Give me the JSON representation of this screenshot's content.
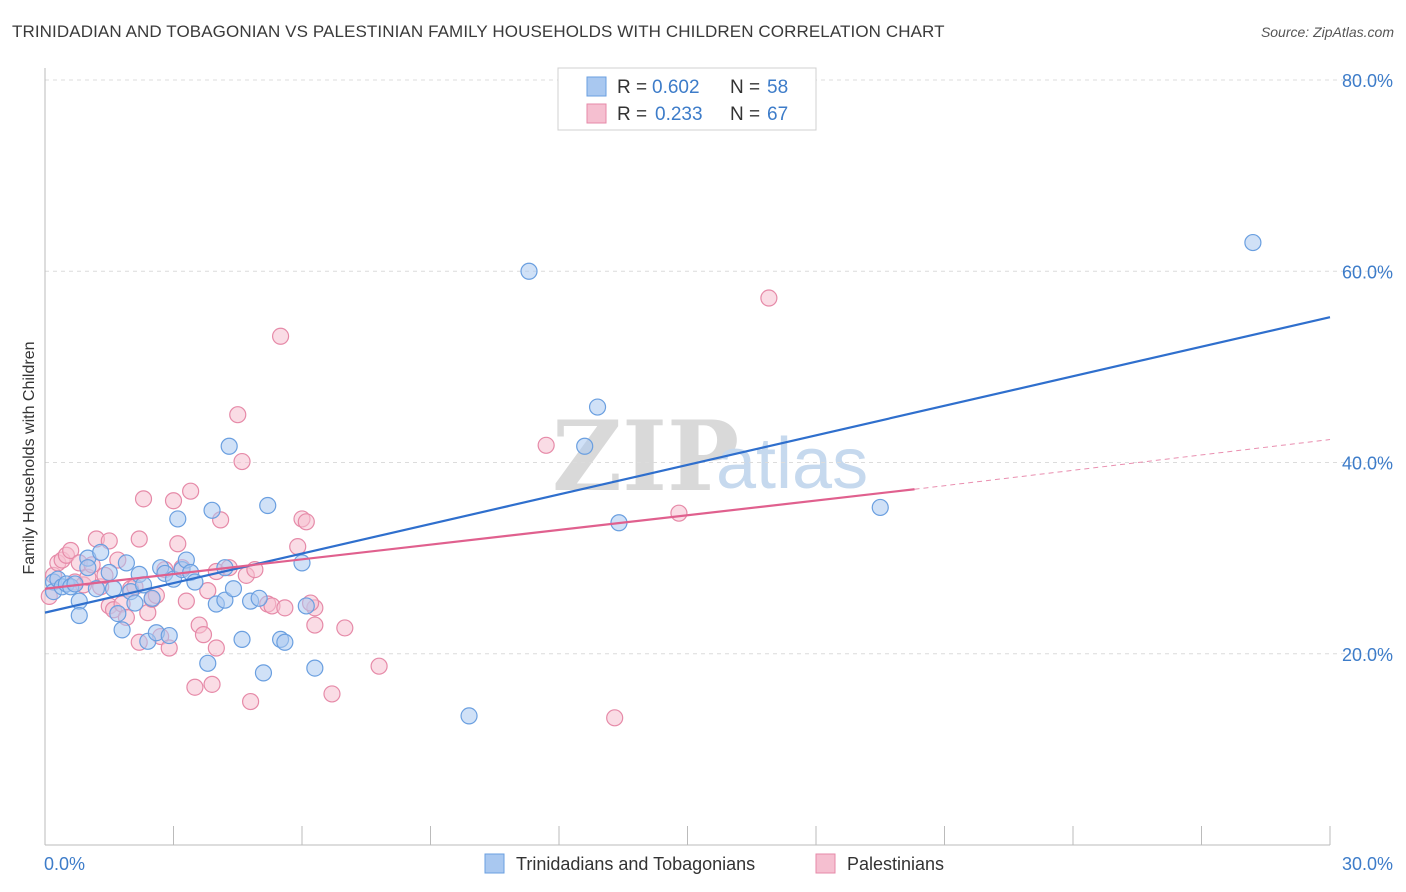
{
  "header": {
    "title": "TRINIDADIAN AND TOBAGONIAN VS PALESTINIAN FAMILY HOUSEHOLDS WITH CHILDREN CORRELATION CHART",
    "source": "Source: ZipAtlas.com"
  },
  "watermark": {
    "zip": "ZIP",
    "atlas": "atlas"
  },
  "legend": {
    "r_label": "R =",
    "n_label": "N =",
    "rows": [
      {
        "name": "Trinidadians and Tobagonians",
        "r": "0.602",
        "n": "58"
      },
      {
        "name": "Palestinians",
        "r": "0.233",
        "n": "67"
      }
    ]
  },
  "colors": {
    "blue_fill": "#a9c8f0",
    "blue_stroke": "#6a9fe0",
    "blue_line": "#2f6fcd",
    "pink_fill": "#f5bfd0",
    "pink_stroke": "#e68aa8",
    "pink_line": "#e0608e",
    "grid": "#dcdcdc",
    "tick_text": "#3d7cc9"
  },
  "chart_data": {
    "type": "scatter",
    "title": "TRINIDADIAN AND TOBAGONIAN VS PALESTINIAN FAMILY HOUSEHOLDS WITH CHILDREN CORRELATION CHART",
    "xlabel": "",
    "ylabel": "Family Households with Children",
    "xlim": [
      0,
      30
    ],
    "ylim": [
      0,
      80
    ],
    "x_tick_labels": [
      {
        "value": 0,
        "label": "0.0%"
      },
      {
        "value": 30,
        "label": "30.0%"
      }
    ],
    "y_tick_labels": [
      {
        "value": 20,
        "label": "20.0%"
      },
      {
        "value": 40,
        "label": "40.0%"
      },
      {
        "value": 60,
        "label": "60.0%"
      },
      {
        "value": 80,
        "label": "80.0%"
      }
    ],
    "series": [
      {
        "name": "Trinidadians and Tobagonians",
        "color": "blue",
        "trend": {
          "x1": 0,
          "y1": 24.3,
          "x2": 30,
          "y2": 55.2
        },
        "points": [
          [
            0.2,
            27.5
          ],
          [
            0.2,
            26.5
          ],
          [
            0.3,
            27.8
          ],
          [
            0.4,
            27.0
          ],
          [
            0.5,
            27.3
          ],
          [
            0.6,
            27.0
          ],
          [
            0.7,
            27.3
          ],
          [
            0.8,
            25.5
          ],
          [
            0.8,
            24.0
          ],
          [
            1.0,
            30.0
          ],
          [
            1.0,
            29.0
          ],
          [
            1.2,
            26.8
          ],
          [
            1.3,
            30.6
          ],
          [
            1.5,
            28.5
          ],
          [
            1.6,
            26.8
          ],
          [
            1.7,
            24.2
          ],
          [
            1.8,
            22.5
          ],
          [
            1.9,
            29.5
          ],
          [
            2.0,
            26.5
          ],
          [
            2.1,
            25.3
          ],
          [
            2.2,
            28.3
          ],
          [
            2.3,
            27.2
          ],
          [
            2.4,
            21.3
          ],
          [
            2.5,
            25.8
          ],
          [
            2.6,
            22.2
          ],
          [
            2.7,
            29.0
          ],
          [
            2.8,
            28.4
          ],
          [
            2.9,
            21.9
          ],
          [
            3.0,
            27.8
          ],
          [
            3.1,
            34.1
          ],
          [
            3.2,
            28.8
          ],
          [
            3.3,
            29.8
          ],
          [
            3.4,
            28.5
          ],
          [
            3.5,
            27.5
          ],
          [
            3.8,
            19.0
          ],
          [
            3.9,
            35.0
          ],
          [
            4.0,
            25.2
          ],
          [
            4.2,
            25.6
          ],
          [
            4.2,
            29.0
          ],
          [
            4.3,
            41.7
          ],
          [
            4.4,
            26.8
          ],
          [
            4.6,
            21.5
          ],
          [
            4.8,
            25.5
          ],
          [
            5.0,
            25.8
          ],
          [
            5.1,
            18.0
          ],
          [
            5.2,
            35.5
          ],
          [
            5.5,
            21.5
          ],
          [
            5.6,
            21.2
          ],
          [
            6.0,
            29.5
          ],
          [
            6.1,
            25.0
          ],
          [
            6.3,
            18.5
          ],
          [
            9.9,
            13.5
          ],
          [
            11.3,
            60.0
          ],
          [
            12.6,
            41.7
          ],
          [
            12.9,
            45.8
          ],
          [
            13.4,
            33.7
          ],
          [
            19.5,
            35.3
          ],
          [
            28.2,
            63.0
          ]
        ]
      },
      {
        "name": "Palestinians",
        "color": "pink",
        "trend": {
          "x1": 0,
          "y1": 26.8,
          "x2": 20.3,
          "y2": 37.2,
          "dash_to_x": 30,
          "dash_to_y": 42.4
        },
        "points": [
          [
            0.1,
            26.0
          ],
          [
            0.2,
            28.2
          ],
          [
            0.3,
            29.5
          ],
          [
            0.4,
            29.8
          ],
          [
            0.5,
            30.3
          ],
          [
            0.6,
            30.8
          ],
          [
            0.7,
            27.5
          ],
          [
            0.8,
            29.5
          ],
          [
            0.9,
            27.2
          ],
          [
            1.0,
            28.0
          ],
          [
            1.1,
            29.3
          ],
          [
            1.2,
            32.0
          ],
          [
            1.3,
            27.0
          ],
          [
            1.4,
            28.2
          ],
          [
            1.5,
            31.8
          ],
          [
            1.5,
            25.0
          ],
          [
            1.6,
            24.6
          ],
          [
            1.7,
            29.8
          ],
          [
            1.8,
            25.2
          ],
          [
            1.9,
            23.8
          ],
          [
            2.0,
            26.8
          ],
          [
            2.1,
            27.0
          ],
          [
            2.2,
            32.0
          ],
          [
            2.2,
            21.2
          ],
          [
            2.3,
            36.2
          ],
          [
            2.4,
            24.3
          ],
          [
            2.5,
            25.7
          ],
          [
            2.6,
            26.1
          ],
          [
            2.7,
            21.8
          ],
          [
            2.8,
            28.8
          ],
          [
            2.9,
            20.6
          ],
          [
            3.0,
            36.0
          ],
          [
            3.1,
            31.5
          ],
          [
            3.2,
            29.0
          ],
          [
            3.3,
            25.5
          ],
          [
            3.4,
            37.0
          ],
          [
            3.5,
            16.5
          ],
          [
            3.6,
            23.0
          ],
          [
            3.7,
            22.0
          ],
          [
            3.8,
            26.6
          ],
          [
            3.9,
            16.8
          ],
          [
            4.0,
            28.6
          ],
          [
            4.1,
            34.0
          ],
          [
            4.3,
            29.0
          ],
          [
            4.5,
            45.0
          ],
          [
            4.6,
            40.1
          ],
          [
            4.7,
            28.2
          ],
          [
            4.8,
            15.0
          ],
          [
            4.9,
            28.8
          ],
          [
            5.2,
            25.2
          ],
          [
            5.3,
            25.0
          ],
          [
            5.5,
            53.2
          ],
          [
            5.6,
            24.8
          ],
          [
            5.9,
            31.2
          ],
          [
            6.0,
            34.1
          ],
          [
            6.1,
            33.8
          ],
          [
            6.3,
            24.8
          ],
          [
            6.3,
            23.0
          ],
          [
            6.7,
            15.8
          ],
          [
            7.0,
            22.7
          ],
          [
            7.8,
            18.7
          ],
          [
            11.7,
            41.8
          ],
          [
            13.3,
            13.3
          ],
          [
            14.8,
            34.7
          ],
          [
            16.9,
            57.2
          ],
          [
            6.2,
            25.3
          ],
          [
            4.0,
            20.6
          ]
        ]
      }
    ]
  }
}
